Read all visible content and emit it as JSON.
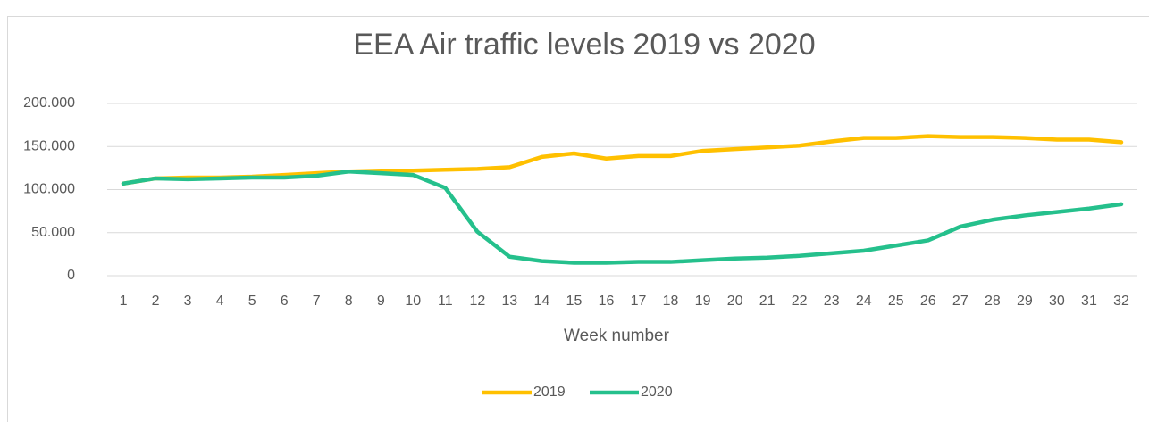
{
  "chart_data": {
    "type": "line",
    "title": "EEA Air traffic levels 2019 vs 2020",
    "x_label": "Week number",
    "categories": [
      1,
      2,
      3,
      4,
      5,
      6,
      7,
      8,
      9,
      10,
      11,
      12,
      13,
      14,
      15,
      16,
      17,
      18,
      19,
      20,
      21,
      22,
      23,
      24,
      25,
      26,
      27,
      28,
      29,
      30,
      31,
      32
    ],
    "series": [
      {
        "name": "2019",
        "color": "#ffc000",
        "values": [
          107000,
          113000,
          114000,
          114000,
          115000,
          117000,
          119000,
          121000,
          122000,
          122000,
          123000,
          124000,
          126000,
          138000,
          142000,
          136000,
          139000,
          139000,
          145000,
          147000,
          149000,
          151000,
          156000,
          160000,
          160000,
          162000,
          161000,
          161000,
          160000,
          158000,
          158000,
          155000
        ]
      },
      {
        "name": "2020",
        "color": "#25c08c",
        "values": [
          107000,
          113000,
          112000,
          113000,
          114000,
          114000,
          116000,
          121000,
          119000,
          117000,
          102000,
          51000,
          22000,
          17000,
          15000,
          15000,
          16000,
          16000,
          18000,
          20000,
          21000,
          23000,
          26000,
          29000,
          35000,
          41000,
          57000,
          65000,
          70000,
          74000,
          78000,
          83000
        ]
      }
    ],
    "ylim": [
      0,
      200000
    ],
    "yticks": [
      0,
      {
        "value": 50000,
        "label": "50.000"
      },
      {
        "value": 100000,
        "label": "100.000"
      },
      {
        "value": 150000,
        "label": "150.000"
      },
      {
        "value": 200000,
        "label": "200.000"
      }
    ],
    "grid": true,
    "legend": "bottom"
  }
}
